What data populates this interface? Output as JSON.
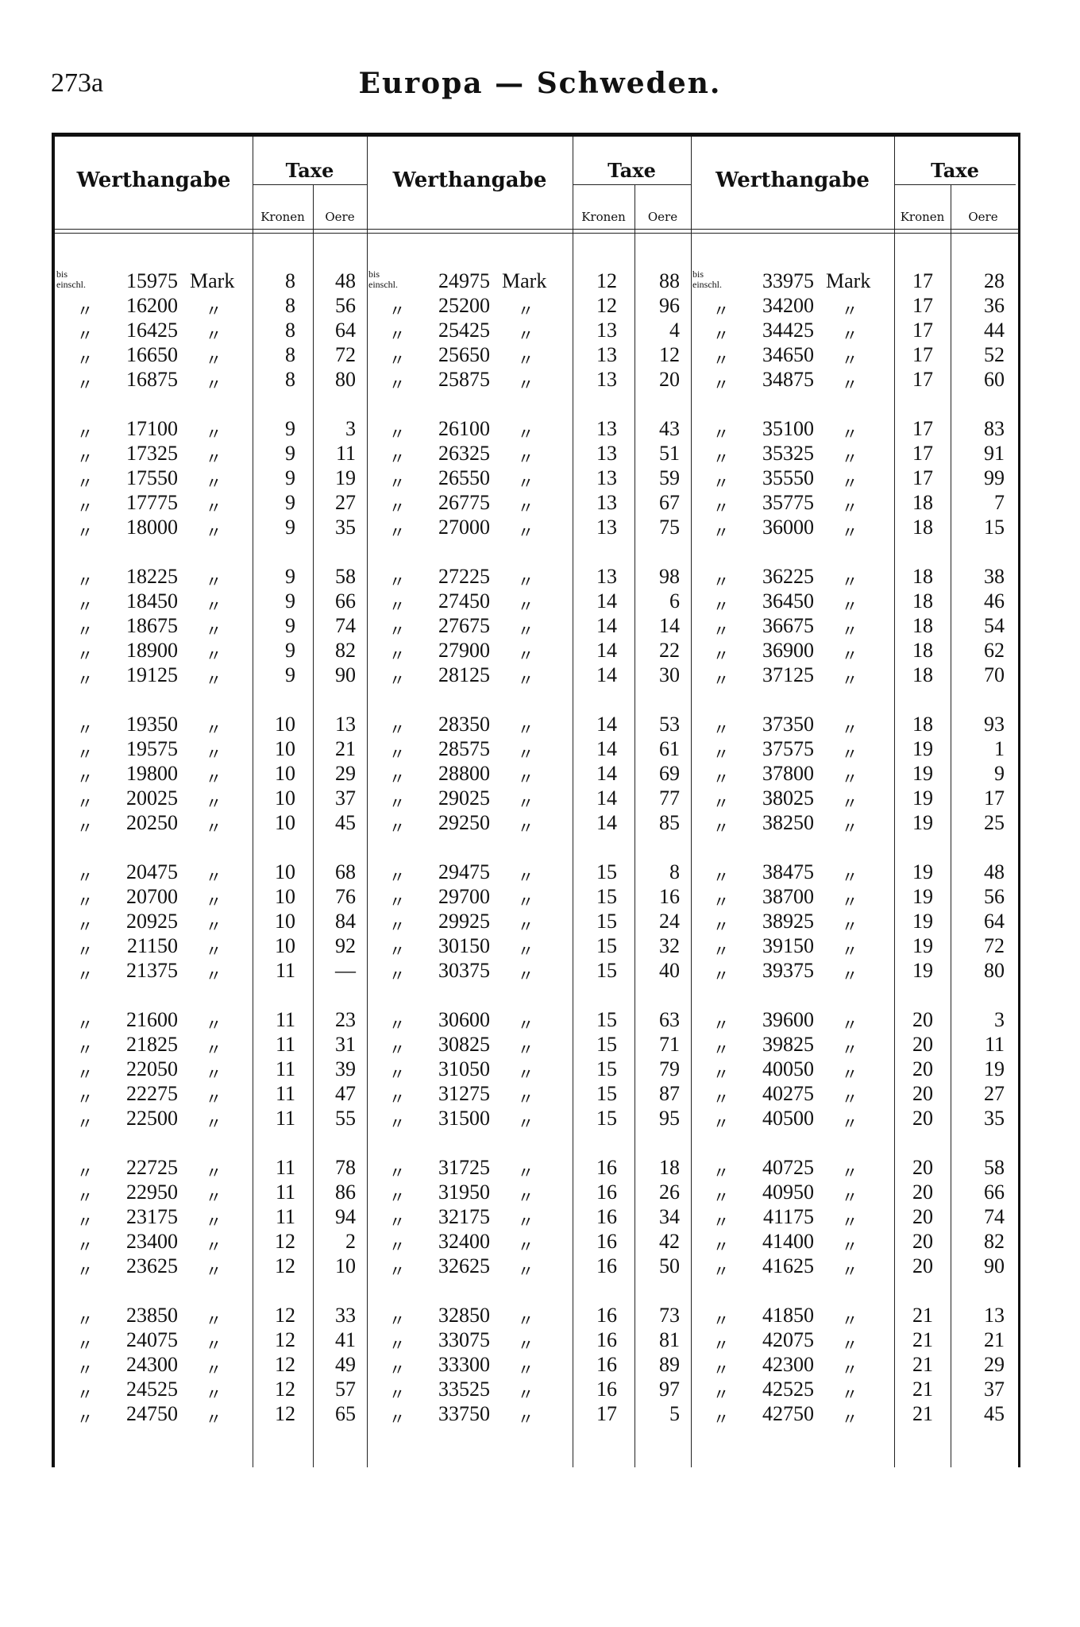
{
  "header": {
    "page_number": "273a",
    "title": "Europa — Schweden."
  },
  "table": {
    "value_header": "Werthangabe",
    "tax_header": "Taxe",
    "kronen_header": "Kronen",
    "oere_header": "Oere",
    "first_prefix": "bis einschl.",
    "unit": "Mark",
    "ditto": "〃",
    "columns": [
      {
        "values": [
          "15975",
          "16200",
          "16425",
          "16650",
          "16875",
          "17100",
          "17325",
          "17550",
          "17775",
          "18000",
          "18225",
          "18450",
          "18675",
          "18900",
          "19125",
          "19350",
          "19575",
          "19800",
          "20025",
          "20250",
          "20475",
          "20700",
          "20925",
          "21150",
          "21375",
          "21600",
          "21825",
          "22050",
          "22275",
          "22500",
          "22725",
          "22950",
          "23175",
          "23400",
          "23625",
          "23850",
          "24075",
          "24300",
          "24525",
          "24750"
        ],
        "kronen": [
          "8",
          "8",
          "8",
          "8",
          "8",
          "9",
          "9",
          "9",
          "9",
          "9",
          "9",
          "9",
          "9",
          "9",
          "9",
          "10",
          "10",
          "10",
          "10",
          "10",
          "10",
          "10",
          "10",
          "10",
          "11",
          "11",
          "11",
          "11",
          "11",
          "11",
          "11",
          "11",
          "11",
          "12",
          "12",
          "12",
          "12",
          "12",
          "12",
          "12"
        ],
        "oere": [
          "48",
          "56",
          "64",
          "72",
          "80",
          "3",
          "11",
          "19",
          "27",
          "35",
          "58",
          "66",
          "74",
          "82",
          "90",
          "13",
          "21",
          "29",
          "37",
          "45",
          "68",
          "76",
          "84",
          "92",
          "—",
          "23",
          "31",
          "39",
          "47",
          "55",
          "78",
          "86",
          "94",
          "2",
          "10",
          "33",
          "41",
          "49",
          "57",
          "65"
        ]
      },
      {
        "values": [
          "24975",
          "25200",
          "25425",
          "25650",
          "25875",
          "26100",
          "26325",
          "26550",
          "26775",
          "27000",
          "27225",
          "27450",
          "27675",
          "27900",
          "28125",
          "28350",
          "28575",
          "28800",
          "29025",
          "29250",
          "29475",
          "29700",
          "29925",
          "30150",
          "30375",
          "30600",
          "30825",
          "31050",
          "31275",
          "31500",
          "31725",
          "31950",
          "32175",
          "32400",
          "32625",
          "32850",
          "33075",
          "33300",
          "33525",
          "33750"
        ],
        "kronen": [
          "12",
          "12",
          "13",
          "13",
          "13",
          "13",
          "13",
          "13",
          "13",
          "13",
          "13",
          "14",
          "14",
          "14",
          "14",
          "14",
          "14",
          "14",
          "14",
          "14",
          "15",
          "15",
          "15",
          "15",
          "15",
          "15",
          "15",
          "15",
          "15",
          "15",
          "16",
          "16",
          "16",
          "16",
          "16",
          "16",
          "16",
          "16",
          "16",
          "17"
        ],
        "oere": [
          "88",
          "96",
          "4",
          "12",
          "20",
          "43",
          "51",
          "59",
          "67",
          "75",
          "98",
          "6",
          "14",
          "22",
          "30",
          "53",
          "61",
          "69",
          "77",
          "85",
          "8",
          "16",
          "24",
          "32",
          "40",
          "63",
          "71",
          "79",
          "87",
          "95",
          "18",
          "26",
          "34",
          "42",
          "50",
          "73",
          "81",
          "89",
          "97",
          "5"
        ]
      },
      {
        "values": [
          "33975",
          "34200",
          "34425",
          "34650",
          "34875",
          "35100",
          "35325",
          "35550",
          "35775",
          "36000",
          "36225",
          "36450",
          "36675",
          "36900",
          "37125",
          "37350",
          "37575",
          "37800",
          "38025",
          "38250",
          "38475",
          "38700",
          "38925",
          "39150",
          "39375",
          "39600",
          "39825",
          "40050",
          "40275",
          "40500",
          "40725",
          "40950",
          "41175",
          "41400",
          "41625",
          "41850",
          "42075",
          "42300",
          "42525",
          "42750"
        ],
        "kronen": [
          "17",
          "17",
          "17",
          "17",
          "17",
          "17",
          "17",
          "17",
          "18",
          "18",
          "18",
          "18",
          "18",
          "18",
          "18",
          "18",
          "19",
          "19",
          "19",
          "19",
          "19",
          "19",
          "19",
          "19",
          "19",
          "20",
          "20",
          "20",
          "20",
          "20",
          "20",
          "20",
          "20",
          "20",
          "20",
          "21",
          "21",
          "21",
          "21",
          "21"
        ],
        "oere": [
          "28",
          "36",
          "44",
          "52",
          "60",
          "83",
          "91",
          "99",
          "7",
          "15",
          "38",
          "46",
          "54",
          "62",
          "70",
          "93",
          "1",
          "9",
          "17",
          "25",
          "48",
          "56",
          "64",
          "72",
          "80",
          "3",
          "11",
          "19",
          "27",
          "35",
          "58",
          "66",
          "74",
          "82",
          "90",
          "13",
          "21",
          "29",
          "37",
          "45"
        ]
      }
    ]
  }
}
